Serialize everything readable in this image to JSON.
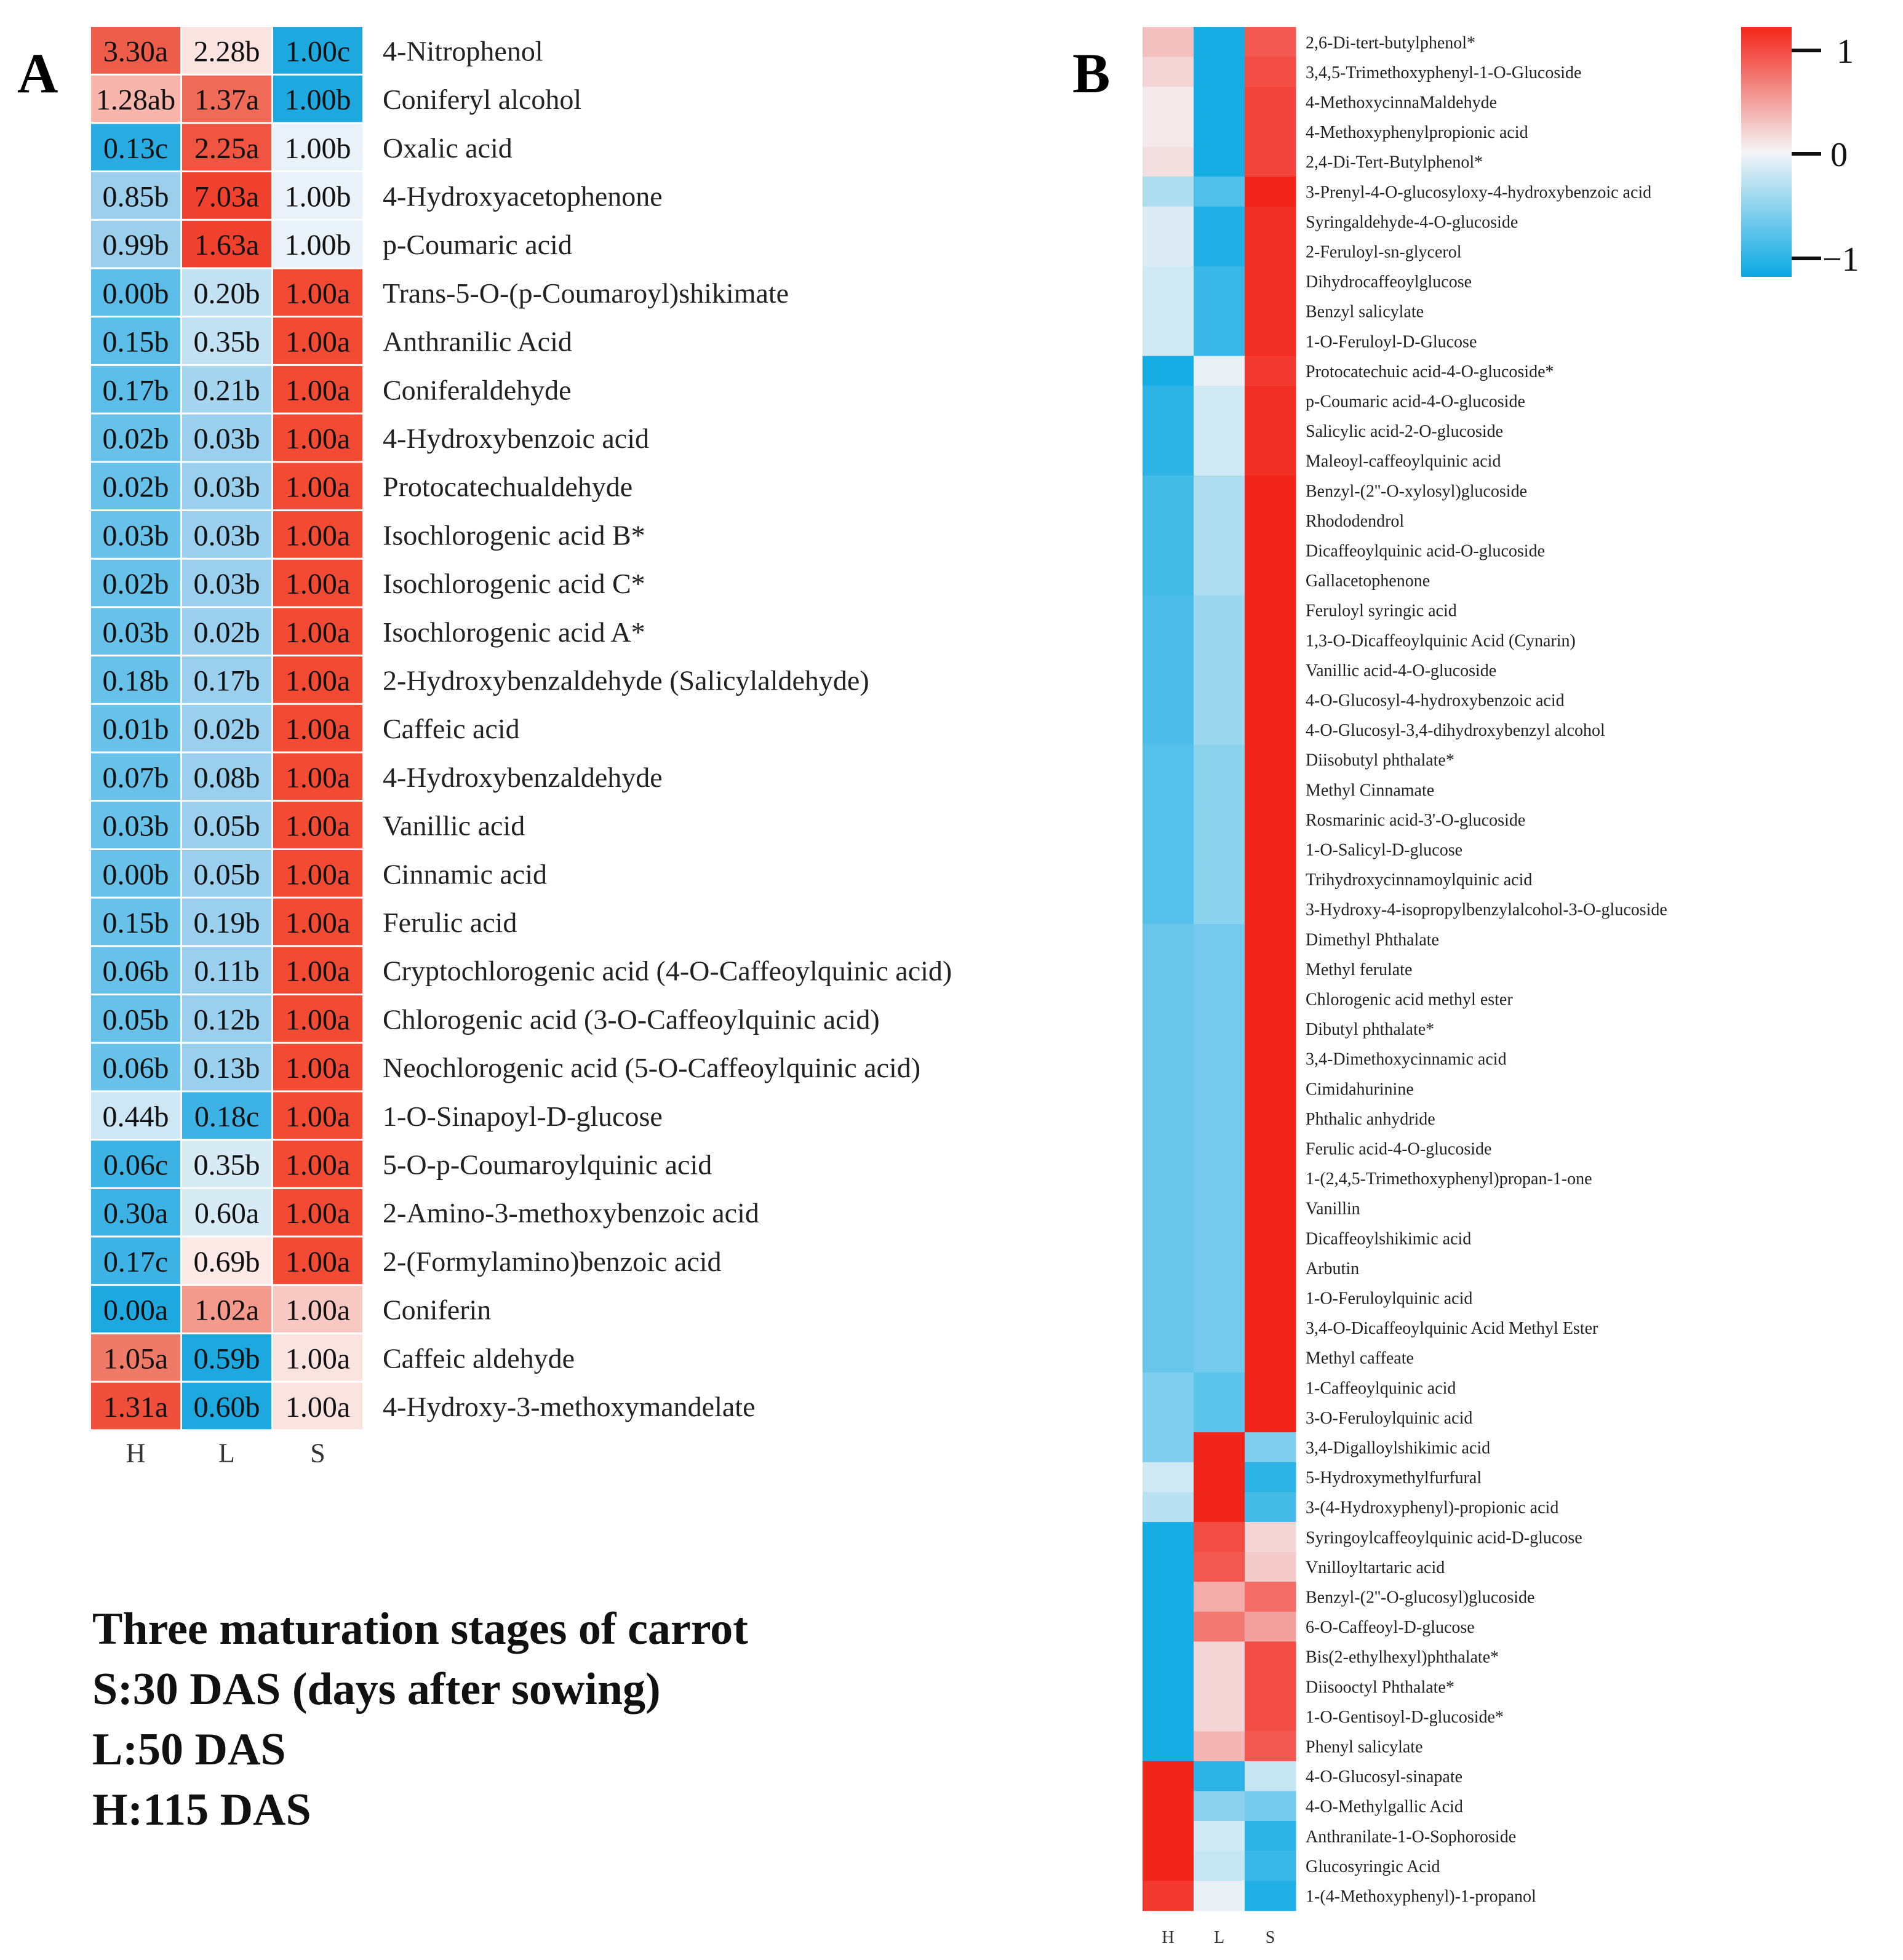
{
  "chart_data": [
    {
      "panel": "A",
      "type": "heatmap",
      "columns": [
        "H",
        "L",
        "S"
      ],
      "rows": [
        {
          "name": "4-Nitrophenol",
          "labels": [
            "3.30a",
            "2.28b",
            "1.00c"
          ],
          "colors": [
            "#ee5c4a",
            "#fbe4e0",
            "#1ea8e0"
          ]
        },
        {
          "name": "Coniferyl alcohol",
          "labels": [
            "1.28ab",
            "1.37a",
            "1.00b"
          ],
          "colors": [
            "#f7b5ac",
            "#f06a58",
            "#1ea8e0"
          ]
        },
        {
          "name": "Oxalic acid",
          "labels": [
            "0.13c",
            "2.25a",
            "1.00b"
          ],
          "colors": [
            "#28ace2",
            "#ef5540",
            "#e8f2f8"
          ]
        },
        {
          "name": "4-Hydroxyacetophenone",
          "labels": [
            "0.85b",
            "7.03a",
            "1.00b"
          ],
          "colors": [
            "#9ccfec",
            "#f0412e",
            "#e8f2f8"
          ]
        },
        {
          "name": "p-Coumaric acid",
          "labels": [
            "0.99b",
            "1.63a",
            "1.00b"
          ],
          "colors": [
            "#9ccfec",
            "#f0412e",
            "#e8f2f8"
          ]
        },
        {
          "name": "Trans-5-O-(p-Coumaroyl)shikimate",
          "labels": [
            "0.00b",
            "0.20b",
            "1.00a"
          ],
          "colors": [
            "#5bbde8",
            "#c2e1f2",
            "#f24a33"
          ]
        },
        {
          "name": "Anthranilic Acid",
          "labels": [
            "0.15b",
            "0.35b",
            "1.00a"
          ],
          "colors": [
            "#5bbde8",
            "#c2e1f2",
            "#f24a33"
          ]
        },
        {
          "name": "Coniferaldehyde",
          "labels": [
            "0.17b",
            "0.21b",
            "1.00a"
          ],
          "colors": [
            "#5bbde8",
            "#a5d5ef",
            "#f24a33"
          ]
        },
        {
          "name": "4-Hydroxybenzoic acid",
          "labels": [
            "0.02b",
            "0.03b",
            "1.00a"
          ],
          "colors": [
            "#68c1e9",
            "#9ad0ed",
            "#f24a33"
          ]
        },
        {
          "name": "Protocatechualdehyde",
          "labels": [
            "0.02b",
            "0.03b",
            "1.00a"
          ],
          "colors": [
            "#68c1e9",
            "#9ad0ed",
            "#f24a33"
          ]
        },
        {
          "name": "Isochlorogenic acid B*",
          "labels": [
            "0.03b",
            "0.03b",
            "1.00a"
          ],
          "colors": [
            "#68c1e9",
            "#9ad0ed",
            "#f24a33"
          ]
        },
        {
          "name": "Isochlorogenic acid C*",
          "labels": [
            "0.02b",
            "0.03b",
            "1.00a"
          ],
          "colors": [
            "#68c1e9",
            "#9ad0ed",
            "#f24a33"
          ]
        },
        {
          "name": "Isochlorogenic acid A*",
          "labels": [
            "0.03b",
            "0.02b",
            "1.00a"
          ],
          "colors": [
            "#68c1e9",
            "#9ad0ed",
            "#f24a33"
          ]
        },
        {
          "name": "2-Hydroxybenzaldehyde (Salicylaldehyde)",
          "labels": [
            "0.18b",
            "0.17b",
            "1.00a"
          ],
          "colors": [
            "#68c1e9",
            "#9ad0ed",
            "#f24a33"
          ]
        },
        {
          "name": "Caffeic acid",
          "labels": [
            "0.01b",
            "0.02b",
            "1.00a"
          ],
          "colors": [
            "#68c1e9",
            "#9ad0ed",
            "#f24a33"
          ]
        },
        {
          "name": "4-Hydroxybenzaldehyde",
          "labels": [
            "0.07b",
            "0.08b",
            "1.00a"
          ],
          "colors": [
            "#68c1e9",
            "#9ad0ed",
            "#f24a33"
          ]
        },
        {
          "name": "Vanillic acid",
          "labels": [
            "0.03b",
            "0.05b",
            "1.00a"
          ],
          "colors": [
            "#68c1e9",
            "#9ad0ed",
            "#f24a33"
          ]
        },
        {
          "name": "Cinnamic acid",
          "labels": [
            "0.00b",
            "0.05b",
            "1.00a"
          ],
          "colors": [
            "#68c1e9",
            "#9ad0ed",
            "#f24a33"
          ]
        },
        {
          "name": "Ferulic acid",
          "labels": [
            "0.15b",
            "0.19b",
            "1.00a"
          ],
          "colors": [
            "#68c1e9",
            "#9ad0ed",
            "#f24a33"
          ]
        },
        {
          "name": "Cryptochlorogenic acid (4-O-Caffeoylquinic acid)",
          "labels": [
            "0.06b",
            "0.11b",
            "1.00a"
          ],
          "colors": [
            "#68c1e9",
            "#9ad0ed",
            "#f24a33"
          ]
        },
        {
          "name": "Chlorogenic acid (3-O-Caffeoylquinic acid)",
          "labels": [
            "0.05b",
            "0.12b",
            "1.00a"
          ],
          "colors": [
            "#68c1e9",
            "#9ad0ed",
            "#f24a33"
          ]
        },
        {
          "name": "Neochlorogenic acid (5-O-Caffeoylquinic acid)",
          "labels": [
            "0.06b",
            "0.13b",
            "1.00a"
          ],
          "colors": [
            "#68c1e9",
            "#9ad0ed",
            "#f24a33"
          ]
        },
        {
          "name": "1-O-Sinapoyl-D-glucose",
          "labels": [
            "0.44b",
            "0.18c",
            "1.00a"
          ],
          "colors": [
            "#cde7f4",
            "#3db2e4",
            "#f24a33"
          ]
        },
        {
          "name": "5-O-p-Coumaroylquinic acid",
          "labels": [
            "0.06c",
            "0.35b",
            "1.00a"
          ],
          "colors": [
            "#3db2e4",
            "#d7ebf5",
            "#f24a33"
          ]
        },
        {
          "name": "2-Amino-3-methoxybenzoic acid",
          "labels": [
            "0.30a",
            "0.60a",
            "1.00a"
          ],
          "colors": [
            "#3db2e4",
            "#d7ebf5",
            "#f24a33"
          ]
        },
        {
          "name": "2-(Formylamino)benzoic acid",
          "labels": [
            "0.17c",
            "0.69b",
            "1.00a"
          ],
          "colors": [
            "#3db2e4",
            "#fde9e6",
            "#f24a33"
          ]
        },
        {
          "name": "Coniferin",
          "labels": [
            "0.00a",
            "1.02a",
            "1.00a"
          ],
          "colors": [
            "#1ea8e0",
            "#f49a8c",
            "#f8c9c2"
          ]
        },
        {
          "name": "Caffeic aldehyde",
          "labels": [
            "1.05a",
            "0.59b",
            "1.00a"
          ],
          "colors": [
            "#f07a68",
            "#1ea8e0",
            "#fbe4e0"
          ]
        },
        {
          "name": "4-Hydroxy-3-methoxymandelate",
          "labels": [
            "1.31a",
            "0.60b",
            "1.00a"
          ],
          "colors": [
            "#ef4f3b",
            "#1ea8e0",
            "#fbe4e0"
          ]
        }
      ]
    },
    {
      "panel": "B",
      "type": "heatmap",
      "columns": [
        "H",
        "L",
        "S"
      ],
      "scale_range": [
        -1,
        1
      ],
      "color_ticks": [
        "1",
        "0",
        "−1"
      ],
      "rows": [
        {
          "name": "2,6-Di-tert-butylphenol*",
          "values": [
            0.25,
            -0.95,
            0.75
          ]
        },
        {
          "name": "3,4,5-Trimethoxyphenyl-1-O-Glucoside",
          "values": [
            0.15,
            -0.95,
            0.8
          ]
        },
        {
          "name": "4-MethoxycinnaMaldehyde",
          "values": [
            0.05,
            -0.95,
            0.85
          ]
        },
        {
          "name": "4-Methoxyphenylpropionic acid",
          "values": [
            0.05,
            -0.95,
            0.85
          ]
        },
        {
          "name": "2,4-Di-Tert-Butylphenol*",
          "values": [
            0.1,
            -0.95,
            0.85
          ]
        },
        {
          "name": "3-Prenyl-4-O-glucosyloxy-4-hydroxybenzoic acid",
          "values": [
            -0.3,
            -0.7,
            1.0
          ]
        },
        {
          "name": "Syringaldehyde-4-O-glucoside",
          "values": [
            -0.1,
            -0.9,
            0.95
          ]
        },
        {
          "name": "2-Feruloyl-sn-glycerol",
          "values": [
            -0.1,
            -0.9,
            0.95
          ]
        },
        {
          "name": "Dihydrocaffeoylglucose",
          "values": [
            -0.15,
            -0.8,
            0.95
          ]
        },
        {
          "name": "Benzyl salicylate",
          "values": [
            -0.15,
            -0.8,
            0.95
          ]
        },
        {
          "name": "1-O-Feruloyl-D-Glucose",
          "values": [
            -0.15,
            -0.8,
            0.95
          ]
        },
        {
          "name": "Protocatechuic acid-4-O-glucoside*",
          "values": [
            -0.95,
            -0.05,
            0.9
          ]
        },
        {
          "name": "p-Coumaric acid-4-O-glucoside",
          "values": [
            -0.85,
            -0.15,
            0.95
          ]
        },
        {
          "name": "Salicylic acid-2-O-glucoside",
          "values": [
            -0.85,
            -0.15,
            0.95
          ]
        },
        {
          "name": "Maleoyl-caffeoylquinic acid",
          "values": [
            -0.85,
            -0.15,
            0.95
          ]
        },
        {
          "name": "Benzyl-(2''-O-xylosyl)glucoside",
          "values": [
            -0.75,
            -0.3,
            1.0
          ]
        },
        {
          "name": "Rhododendrol",
          "values": [
            -0.75,
            -0.3,
            1.0
          ]
        },
        {
          "name": "Dicaffeoylquinic acid-O-glucoside",
          "values": [
            -0.75,
            -0.3,
            1.0
          ]
        },
        {
          "name": "Gallacetophenone",
          "values": [
            -0.75,
            -0.3,
            1.0
          ]
        },
        {
          "name": "Feruloyl syringic acid",
          "values": [
            -0.72,
            -0.38,
            1.0
          ]
        },
        {
          "name": "1,3-O-Dicaffeoylquinic Acid (Cynarin)",
          "values": [
            -0.72,
            -0.38,
            1.0
          ]
        },
        {
          "name": "Vanillic acid-4-O-glucoside",
          "values": [
            -0.72,
            -0.38,
            1.0
          ]
        },
        {
          "name": "4-O-Glucosyl-4-hydroxybenzoic acid",
          "values": [
            -0.72,
            -0.38,
            1.0
          ]
        },
        {
          "name": "4-O-Glucosyl-3,4-dihydroxybenzyl alcohol",
          "values": [
            -0.72,
            -0.38,
            1.0
          ]
        },
        {
          "name": "Diisobutyl phthalate*",
          "values": [
            -0.68,
            -0.45,
            1.0
          ]
        },
        {
          "name": "Methyl Cinnamate",
          "values": [
            -0.68,
            -0.45,
            1.0
          ]
        },
        {
          "name": "Rosmarinic acid-3'-O-glucoside",
          "values": [
            -0.68,
            -0.45,
            1.0
          ]
        },
        {
          "name": "1-O-Salicyl-D-glucose",
          "values": [
            -0.68,
            -0.45,
            1.0
          ]
        },
        {
          "name": "Trihydroxycinnamoylquinic acid",
          "values": [
            -0.68,
            -0.45,
            1.0
          ]
        },
        {
          "name": "3-Hydroxy-4-isopropylbenzylalcohol-3-O-glucoside",
          "values": [
            -0.68,
            -0.45,
            1.0
          ]
        },
        {
          "name": "Dimethyl Phthalate",
          "values": [
            -0.6,
            -0.55,
            1.0
          ]
        },
        {
          "name": "Methyl ferulate",
          "values": [
            -0.6,
            -0.55,
            1.0
          ]
        },
        {
          "name": "Chlorogenic acid methyl ester",
          "values": [
            -0.6,
            -0.55,
            1.0
          ]
        },
        {
          "name": "Dibutyl phthalate*",
          "values": [
            -0.6,
            -0.55,
            1.0
          ]
        },
        {
          "name": "3,4-Dimethoxycinnamic acid",
          "values": [
            -0.6,
            -0.55,
            1.0
          ]
        },
        {
          "name": "Cimidahurinine",
          "values": [
            -0.6,
            -0.55,
            1.0
          ]
        },
        {
          "name": "Phthalic anhydride",
          "values": [
            -0.6,
            -0.55,
            1.0
          ]
        },
        {
          "name": "Ferulic acid-4-O-glucoside",
          "values": [
            -0.6,
            -0.55,
            1.0
          ]
        },
        {
          "name": "1-(2,4,5-Trimethoxyphenyl)propan-1-one",
          "values": [
            -0.6,
            -0.55,
            1.0
          ]
        },
        {
          "name": "Vanillin",
          "values": [
            -0.6,
            -0.55,
            1.0
          ]
        },
        {
          "name": "Dicaffeoylshikimic acid",
          "values": [
            -0.6,
            -0.55,
            1.0
          ]
        },
        {
          "name": "Arbutin",
          "values": [
            -0.6,
            -0.55,
            1.0
          ]
        },
        {
          "name": "1-O-Feruloylquinic acid",
          "values": [
            -0.6,
            -0.55,
            1.0
          ]
        },
        {
          "name": "3,4-O-Dicaffeoylquinic Acid Methyl Ester",
          "values": [
            -0.6,
            -0.55,
            1.0
          ]
        },
        {
          "name": "Methyl caffeate",
          "values": [
            -0.6,
            -0.55,
            1.0
          ]
        },
        {
          "name": "1-Caffeoylquinic acid",
          "values": [
            -0.5,
            -0.65,
            1.0
          ]
        },
        {
          "name": "3-O-Feruloylquinic acid",
          "values": [
            -0.5,
            -0.65,
            1.0
          ]
        },
        {
          "name": "3,4-Digalloylshikimic acid",
          "values": [
            -0.5,
            1.0,
            -0.5
          ]
        },
        {
          "name": "5-Hydroxymethylfurfural",
          "values": [
            -0.15,
            1.0,
            -0.85
          ]
        },
        {
          "name": "3-(4-Hydroxyphenyl)-propionic acid",
          "values": [
            -0.25,
            1.0,
            -0.75
          ]
        },
        {
          "name": "Syringoylcaffeoylquinic acid-D-glucose",
          "values": [
            -0.95,
            0.8,
            0.15
          ]
        },
        {
          "name": "Vnilloyltartaric acid",
          "values": [
            -0.95,
            0.75,
            0.2
          ]
        },
        {
          "name": "Benzyl-(2''-O-glucosyl)glucoside",
          "values": [
            -0.95,
            0.35,
            0.65
          ]
        },
        {
          "name": "6-O-Caffeoyl-D-glucose",
          "values": [
            -0.95,
            0.6,
            0.4
          ]
        },
        {
          "name": "Bis(2-ethylhexyl)phthalate*",
          "values": [
            -0.95,
            0.15,
            0.8
          ]
        },
        {
          "name": "Diisooctyl Phthalate*",
          "values": [
            -0.95,
            0.15,
            0.8
          ]
        },
        {
          "name": "1-O-Gentisoyl-D-glucoside*",
          "values": [
            -0.95,
            0.15,
            0.8
          ]
        },
        {
          "name": "Phenyl salicylate",
          "values": [
            -0.95,
            0.3,
            0.75
          ]
        },
        {
          "name": "4-O-Glucosyl-sinapate",
          "values": [
            1.0,
            -0.85,
            -0.2
          ]
        },
        {
          "name": "4-O-Methylgallic Acid",
          "values": [
            1.0,
            -0.45,
            -0.55
          ]
        },
        {
          "name": "Anthranilate-1-O-Sophoroside",
          "values": [
            1.0,
            -0.15,
            -0.85
          ]
        },
        {
          "name": "Glucosyringic Acid",
          "values": [
            1.0,
            -0.2,
            -0.8
          ]
        },
        {
          "name": "1-(4-Methoxyphenyl)-1-propanol",
          "values": [
            0.9,
            -0.05,
            -0.9
          ]
        }
      ]
    }
  ],
  "panel_labels": {
    "a": "A",
    "b": "B"
  },
  "caption_lines": [
    "Three maturation stages of carrot",
    "S:30 DAS (days after sowing)",
    "L:50 DAS",
    "H:115 DAS"
  ]
}
